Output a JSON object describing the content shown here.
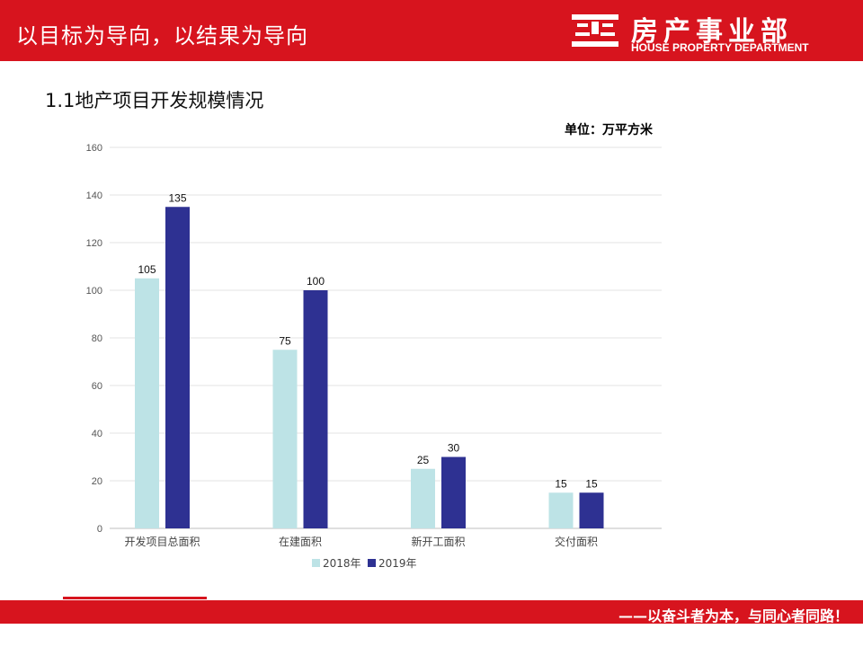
{
  "header": {
    "title": "以目标为导向，以结果为导向",
    "logo_cn": "房产事业部",
    "logo_en": "HOUSE PROPERTY DEPARTMENT"
  },
  "section": {
    "title": "1.1地产项目开发规模情况",
    "unit": "单位：万平方米"
  },
  "colors": {
    "brand_red": "#d7141e",
    "series_2018": "#bde3e6",
    "series_2019": "#2e3192"
  },
  "chart_data": {
    "type": "bar",
    "categories": [
      "开发项目总面积",
      "在建面积",
      "新开工面积",
      "交付面积"
    ],
    "series": [
      {
        "name": "2018年",
        "values": [
          105,
          75,
          25,
          15
        ]
      },
      {
        "name": "2019年",
        "values": [
          135,
          100,
          30,
          15
        ]
      }
    ],
    "ylim": [
      0,
      160
    ],
    "yticks": [
      0,
      20,
      40,
      60,
      80,
      100,
      120,
      140,
      160
    ],
    "grid": true,
    "legend": "bottom"
  },
  "footer": {
    "slogan": "——以奋斗者为本，与同心者同路！"
  }
}
